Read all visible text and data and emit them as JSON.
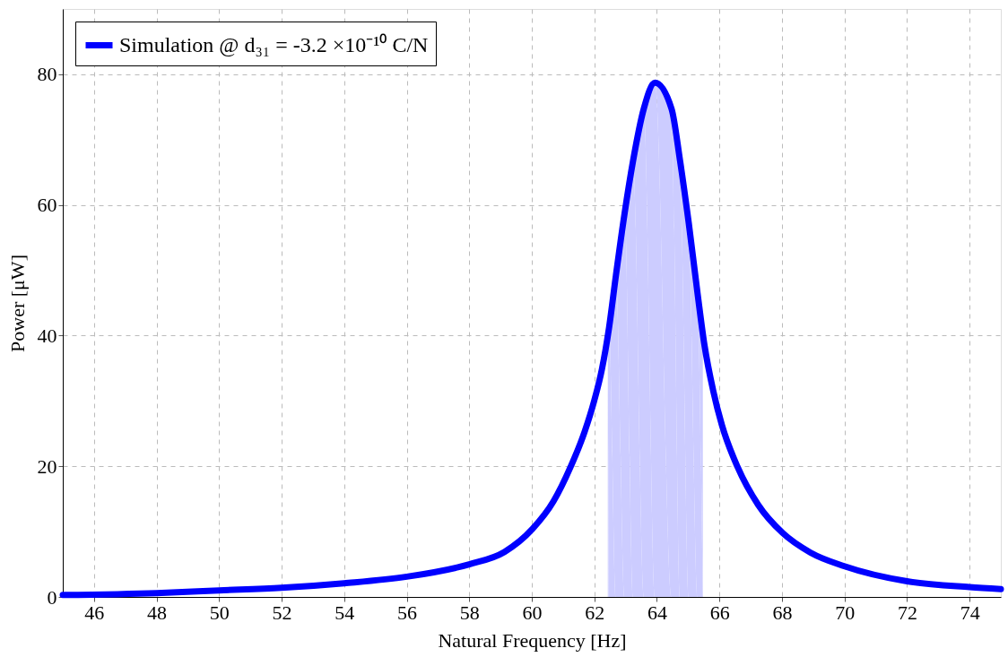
{
  "chart_data": {
    "type": "line",
    "xlabel": "Natural Frequency [Hz]",
    "ylabel": "Power [μW]",
    "xlim": [
      45,
      75
    ],
    "ylim": [
      0,
      90
    ],
    "xticks": [
      46,
      48,
      50,
      52,
      54,
      56,
      58,
      60,
      62,
      64,
      66,
      68,
      70,
      72,
      74
    ],
    "yticks": [
      0,
      20,
      40,
      60,
      80
    ],
    "grid": true,
    "legend": "top left",
    "marker": "none",
    "line_style": "solid",
    "series": [
      {
        "type": "area",
        "color": "#ccccff",
        "x": [
          62.43,
          62.47,
          62.69,
          62.97,
          63.24,
          63.58,
          63.94,
          64.47,
          64.74,
          65.02,
          65.3,
          65.47
        ],
        "values": [
          40,
          41.2,
          49.2,
          58.8,
          66.8,
          74.7,
          78.7,
          74.7,
          66.8,
          57.2,
          46.5,
          40.4
        ]
      },
      {
        "type": "line",
        "name": "Simulation @ d₃₁ = -3.2 ×10⁻¹⁰ C/N",
        "color": "#0000ff",
        "x": [
          45,
          48,
          50,
          52,
          54,
          56,
          58,
          59.13,
          60.02,
          60.69,
          61.24,
          61.69,
          62.0,
          62.24,
          62.47,
          62.69,
          62.97,
          63.24,
          63.58,
          63.94,
          64.47,
          64.74,
          65.02,
          65.3,
          65.52,
          65.8,
          66.08,
          66.58,
          67.24,
          68.02,
          68.91,
          70,
          72,
          74,
          75
        ],
        "values": [
          0.3,
          0.6,
          1.0,
          1.4,
          2.1,
          3.1,
          5.0,
          6.9,
          10.4,
          14.6,
          19.9,
          25.3,
          30.1,
          34.8,
          41.2,
          49.2,
          58.8,
          66.8,
          74.7,
          78.7,
          74.7,
          66.8,
          57.2,
          46.5,
          38.6,
          31.6,
          26.3,
          19.9,
          14.1,
          9.8,
          6.8,
          4.7,
          2.4,
          1.5,
          1.2
        ]
      }
    ]
  }
}
